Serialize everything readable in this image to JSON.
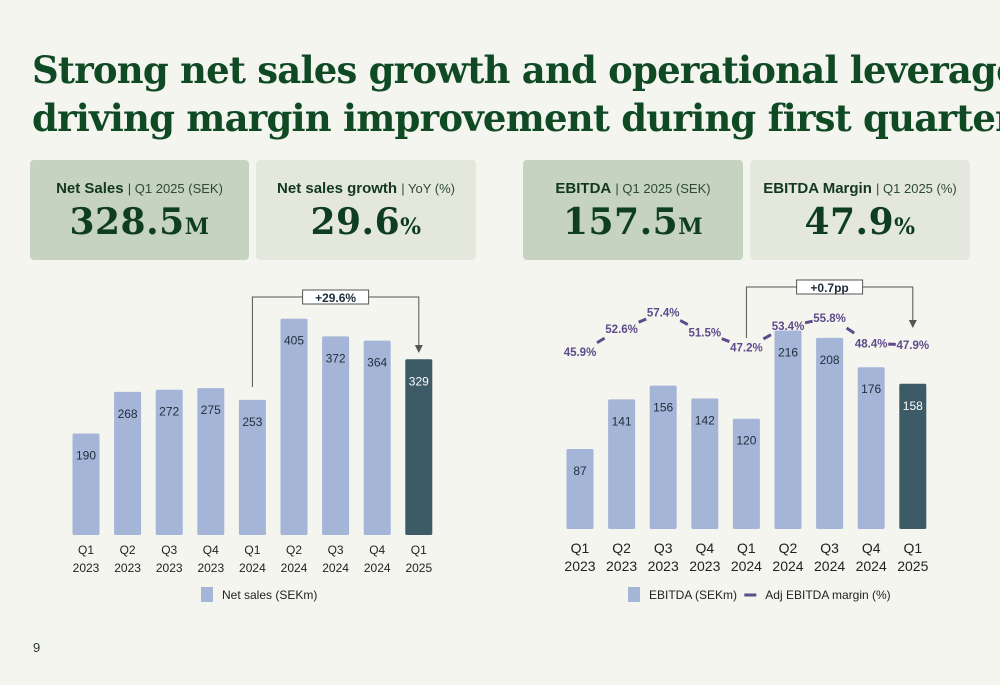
{
  "title_lines": [
    "Strong net sales growth and operational leverage",
    "driving margin improvement during first quarter"
  ],
  "kpis": [
    {
      "label": "Net Sales",
      "sub": "| Q1 2025 (SEK)",
      "value": "328.5",
      "unit": "M"
    },
    {
      "label": "Net sales growth",
      "sub": "| YoY (%)",
      "value": "29.6",
      "unit": "%"
    },
    {
      "label": "EBITDA",
      "sub": "| Q1 2025 (SEK)",
      "value": "157.5",
      "unit": "M"
    },
    {
      "label": "EBITDA Margin",
      "sub": "| Q1 2025 (%)",
      "value": "47.9",
      "unit": "%"
    }
  ],
  "colors": {
    "bar": "#a5b5d8",
    "highlight": "#3d5a67",
    "line": "#5e4b8b",
    "title": "#0f4a25"
  },
  "page_number": "9",
  "chart_data": [
    {
      "type": "bar",
      "categories": [
        [
          "Q1",
          "2023"
        ],
        [
          "Q2",
          "2023"
        ],
        [
          "Q3",
          "2023"
        ],
        [
          "Q4",
          "2023"
        ],
        [
          "Q1",
          "2024"
        ],
        [
          "Q2",
          "2024"
        ],
        [
          "Q3",
          "2024"
        ],
        [
          "Q4",
          "2024"
        ],
        [
          "Q1",
          "2025"
        ]
      ],
      "series": [
        {
          "name": "Net sales (SEKm)",
          "values": [
            190,
            268,
            272,
            275,
            253,
            405,
            372,
            364,
            329
          ]
        }
      ],
      "highlight_index": 8,
      "annotation": {
        "text": "+29.6%",
        "from_index": 4,
        "to_index": 8
      },
      "ylim": [
        0,
        440
      ],
      "legend": "bottom"
    },
    {
      "type": "bar+line",
      "categories": [
        [
          "Q1",
          "2023"
        ],
        [
          "Q2",
          "2023"
        ],
        [
          "Q3",
          "2023"
        ],
        [
          "Q4",
          "2023"
        ],
        [
          "Q1",
          "2024"
        ],
        [
          "Q2",
          "2024"
        ],
        [
          "Q3",
          "2024"
        ],
        [
          "Q4",
          "2024"
        ],
        [
          "Q1",
          "2025"
        ]
      ],
      "series": [
        {
          "name": "EBITDA (SEKm)",
          "type": "bar",
          "values": [
            87,
            141,
            156,
            142,
            120,
            216,
            208,
            176,
            158
          ]
        },
        {
          "name": "Adj EBITDA margin (%)",
          "type": "line",
          "values": [
            45.9,
            52.6,
            57.4,
            51.5,
            47.2,
            53.4,
            55.8,
            48.4,
            47.9
          ],
          "labels": [
            "45.9%",
            "52.6%",
            "57.4%",
            "51.5%",
            "47.2%",
            "53.4%",
            "55.8%",
            "48.4%",
            "47.9%"
          ]
        }
      ],
      "highlight_index": 8,
      "annotation": {
        "text": "+0.7pp",
        "from_index": 4,
        "to_index": 8
      },
      "ylim": [
        0,
        235
      ],
      "line_ylim": [
        0,
        100
      ],
      "legend": "bottom"
    }
  ]
}
